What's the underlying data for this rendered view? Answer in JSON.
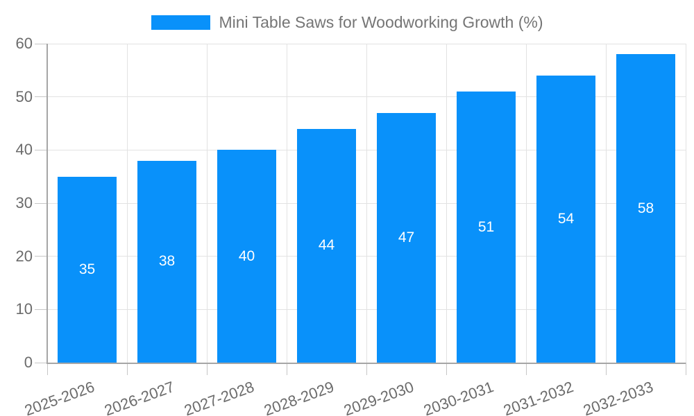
{
  "chart_data": {
    "type": "bar",
    "categories": [
      "2025-2026",
      "2026-2027",
      "2027-2028",
      "2028-2029",
      "2029-2030",
      "2030-2031",
      "2031-2032",
      "2032-2033"
    ],
    "series": [
      {
        "name": "Mini Table Saws for Woodworking Growth (%)",
        "values": [
          35,
          38,
          40,
          44,
          47,
          51,
          54,
          58
        ]
      }
    ],
    "xlabel": "",
    "ylabel": "",
    "ylim": [
      0,
      60
    ],
    "yticks": [
      0,
      10,
      20,
      30,
      40,
      50,
      60
    ],
    "grid": true,
    "legend_position": "top-center",
    "value_labels_shown": true,
    "colors": {
      "bar": "#0991fa",
      "value_label": "#ffffff",
      "gridline": "#e2e2e2",
      "axis_line": "#a6a6a6",
      "tick": "#c6c6c6",
      "tick_label": "#6b6b6b",
      "legend_text": "#757575",
      "background": "#ffffff"
    }
  }
}
